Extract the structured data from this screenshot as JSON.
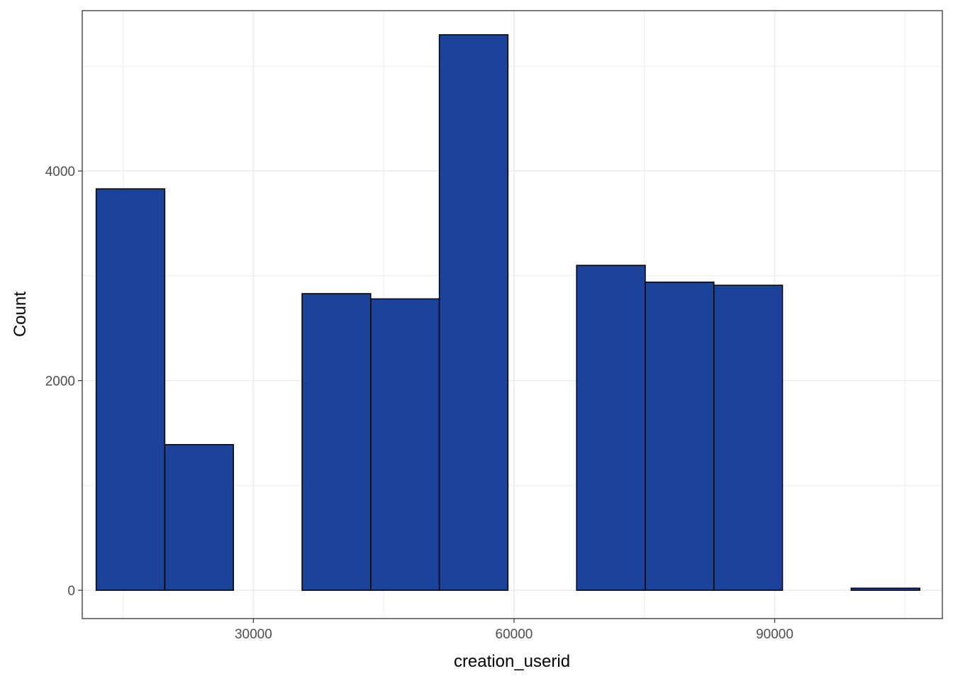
{
  "chart_data": {
    "type": "bar",
    "subtype": "histogram",
    "xlabel": "creation_userid",
    "ylabel": "Count",
    "xlim": [
      10300,
      109300
    ],
    "ylim": [
      -270,
      5530
    ],
    "x_ticks": [
      30000,
      60000,
      90000
    ],
    "x_tick_labels": [
      "30000",
      "60000",
      "90000"
    ],
    "y_ticks": [
      0,
      2000,
      4000
    ],
    "y_tick_labels": [
      "0",
      "2000",
      "4000"
    ],
    "x_minor_gridlines": [
      15000,
      45000,
      75000,
      105000
    ],
    "y_minor_gridlines": [
      1000,
      3000,
      5000
    ],
    "grid": true,
    "theme": "bw",
    "fill_color": "#1a4399",
    "border_color": "#000000",
    "grid_color": "#ebebeb",
    "bins": [
      {
        "x_min": 11900,
        "x_max": 19800,
        "count": 3830
      },
      {
        "x_min": 19800,
        "x_max": 27700,
        "count": 1390
      },
      {
        "x_min": 27700,
        "x_max": 35600,
        "count": 0
      },
      {
        "x_min": 35600,
        "x_max": 43500,
        "count": 2830
      },
      {
        "x_min": 43500,
        "x_max": 51400,
        "count": 2780
      },
      {
        "x_min": 51400,
        "x_max": 59300,
        "count": 5300
      },
      {
        "x_min": 59300,
        "x_max": 67200,
        "count": 0
      },
      {
        "x_min": 67200,
        "x_max": 75100,
        "count": 3100
      },
      {
        "x_min": 75100,
        "x_max": 83000,
        "count": 2940
      },
      {
        "x_min": 83000,
        "x_max": 90900,
        "count": 2910
      },
      {
        "x_min": 90900,
        "x_max": 98800,
        "count": 0
      },
      {
        "x_min": 98800,
        "x_max": 106700,
        "count": 20
      }
    ]
  }
}
